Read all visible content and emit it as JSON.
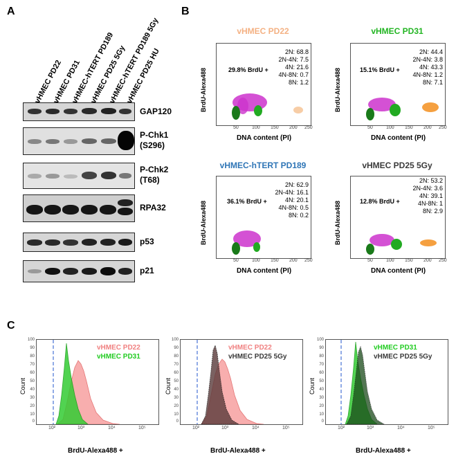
{
  "figure": {
    "panel_a_letter": "A",
    "panel_b_letter": "B",
    "panel_c_letter": "C"
  },
  "panel_a": {
    "lanes": [
      "vHMEC PD22",
      "vHMEC PD31",
      "vHMEC-hTERT PD189",
      "vHMEC PD25 5Gy",
      "vHMEC-hTERT PD189 5Gy",
      "vHMEC PD25 HU"
    ],
    "blots": [
      {
        "label_line1": "GAP120",
        "label_line2": ""
      },
      {
        "label_line1": "P-Chk1",
        "label_line2": "(S296)"
      },
      {
        "label_line1": "P-Chk2",
        "label_line2": "(T68)"
      },
      {
        "label_line1": "RPA32",
        "label_line2": ""
      },
      {
        "label_line1": "p53",
        "label_line2": ""
      },
      {
        "label_line1": "p21",
        "label_line2": ""
      }
    ]
  },
  "panel_b": {
    "y_axis_label": "BrdU-Alexa488",
    "x_axis_label": "DNA content  (PI)",
    "x_ticks": [
      "50",
      "100",
      "150",
      "200",
      "250"
    ],
    "plots": [
      {
        "title": "vHMEC PD22",
        "title_color": "#f4b183",
        "brdu": "29.8% BrdU +",
        "ploidy": [
          "2N: 68.8",
          "2N-4N: 7.5",
          "4N: 21.6",
          "4N-8N: 0.7",
          "8N: 1.2"
        ]
      },
      {
        "title": "vHMEC PD31",
        "title_color": "#22b522",
        "brdu": "15.1% BrdU +",
        "ploidy": [
          "2N: 44.4",
          "2N-4N: 3.8",
          "4N: 43.3",
          "4N-8N: 1.2",
          "8N: 7.1"
        ]
      },
      {
        "title": "vHMEC-hTERT PD189",
        "title_color": "#2e75b6",
        "brdu": "36.1% BrdU +",
        "ploidy": [
          "2N: 62.9",
          "2N-4N: 16.1",
          "4N: 20.1",
          "4N-8N: 0.5",
          "8N: 0.2"
        ]
      },
      {
        "title": "vHMEC PD25 5Gy",
        "title_color": "#3a3a3a",
        "brdu": "12.8% BrdU +",
        "ploidy": [
          "2N: 53.2",
          "2N-4N: 3.6",
          "4N: 39.1",
          "4N-8N: 1",
          "8N: 2.9"
        ]
      }
    ]
  },
  "panel_c": {
    "y_axis_label": "Count",
    "x_axis_label": "BrdU-Alexa488 +",
    "x_ticks": [
      "10²",
      "10³",
      "10⁴",
      "10⁵"
    ],
    "y_ticks": [
      "100",
      "90",
      "80",
      "70",
      "60",
      "50",
      "40",
      "30",
      "20",
      "10",
      "0"
    ],
    "plots": [
      {
        "legend_top": "vHMEC  PD22",
        "legend_top_color": "#f08080",
        "legend_bottom": "vHMEC  PD31",
        "legend_bottom_color": "#22cc22"
      },
      {
        "legend_top": "vHMEC  PD22",
        "legend_top_color": "#f08080",
        "legend_bottom": "vHMEC  PD25 5Gy",
        "legend_bottom_color": "#3a3a3a"
      },
      {
        "legend_top": "vHMEC  PD31",
        "legend_top_color": "#22cc22",
        "legend_bottom": "vHMEC  PD25 5Gy",
        "legend_bottom_color": "#3a3a3a"
      }
    ]
  },
  "colors": {
    "brdu_positive": "#cc33cc",
    "g1_population": "#1a7a1a",
    "polyploid": "#f5a040",
    "gate_line": "#2255cc"
  }
}
